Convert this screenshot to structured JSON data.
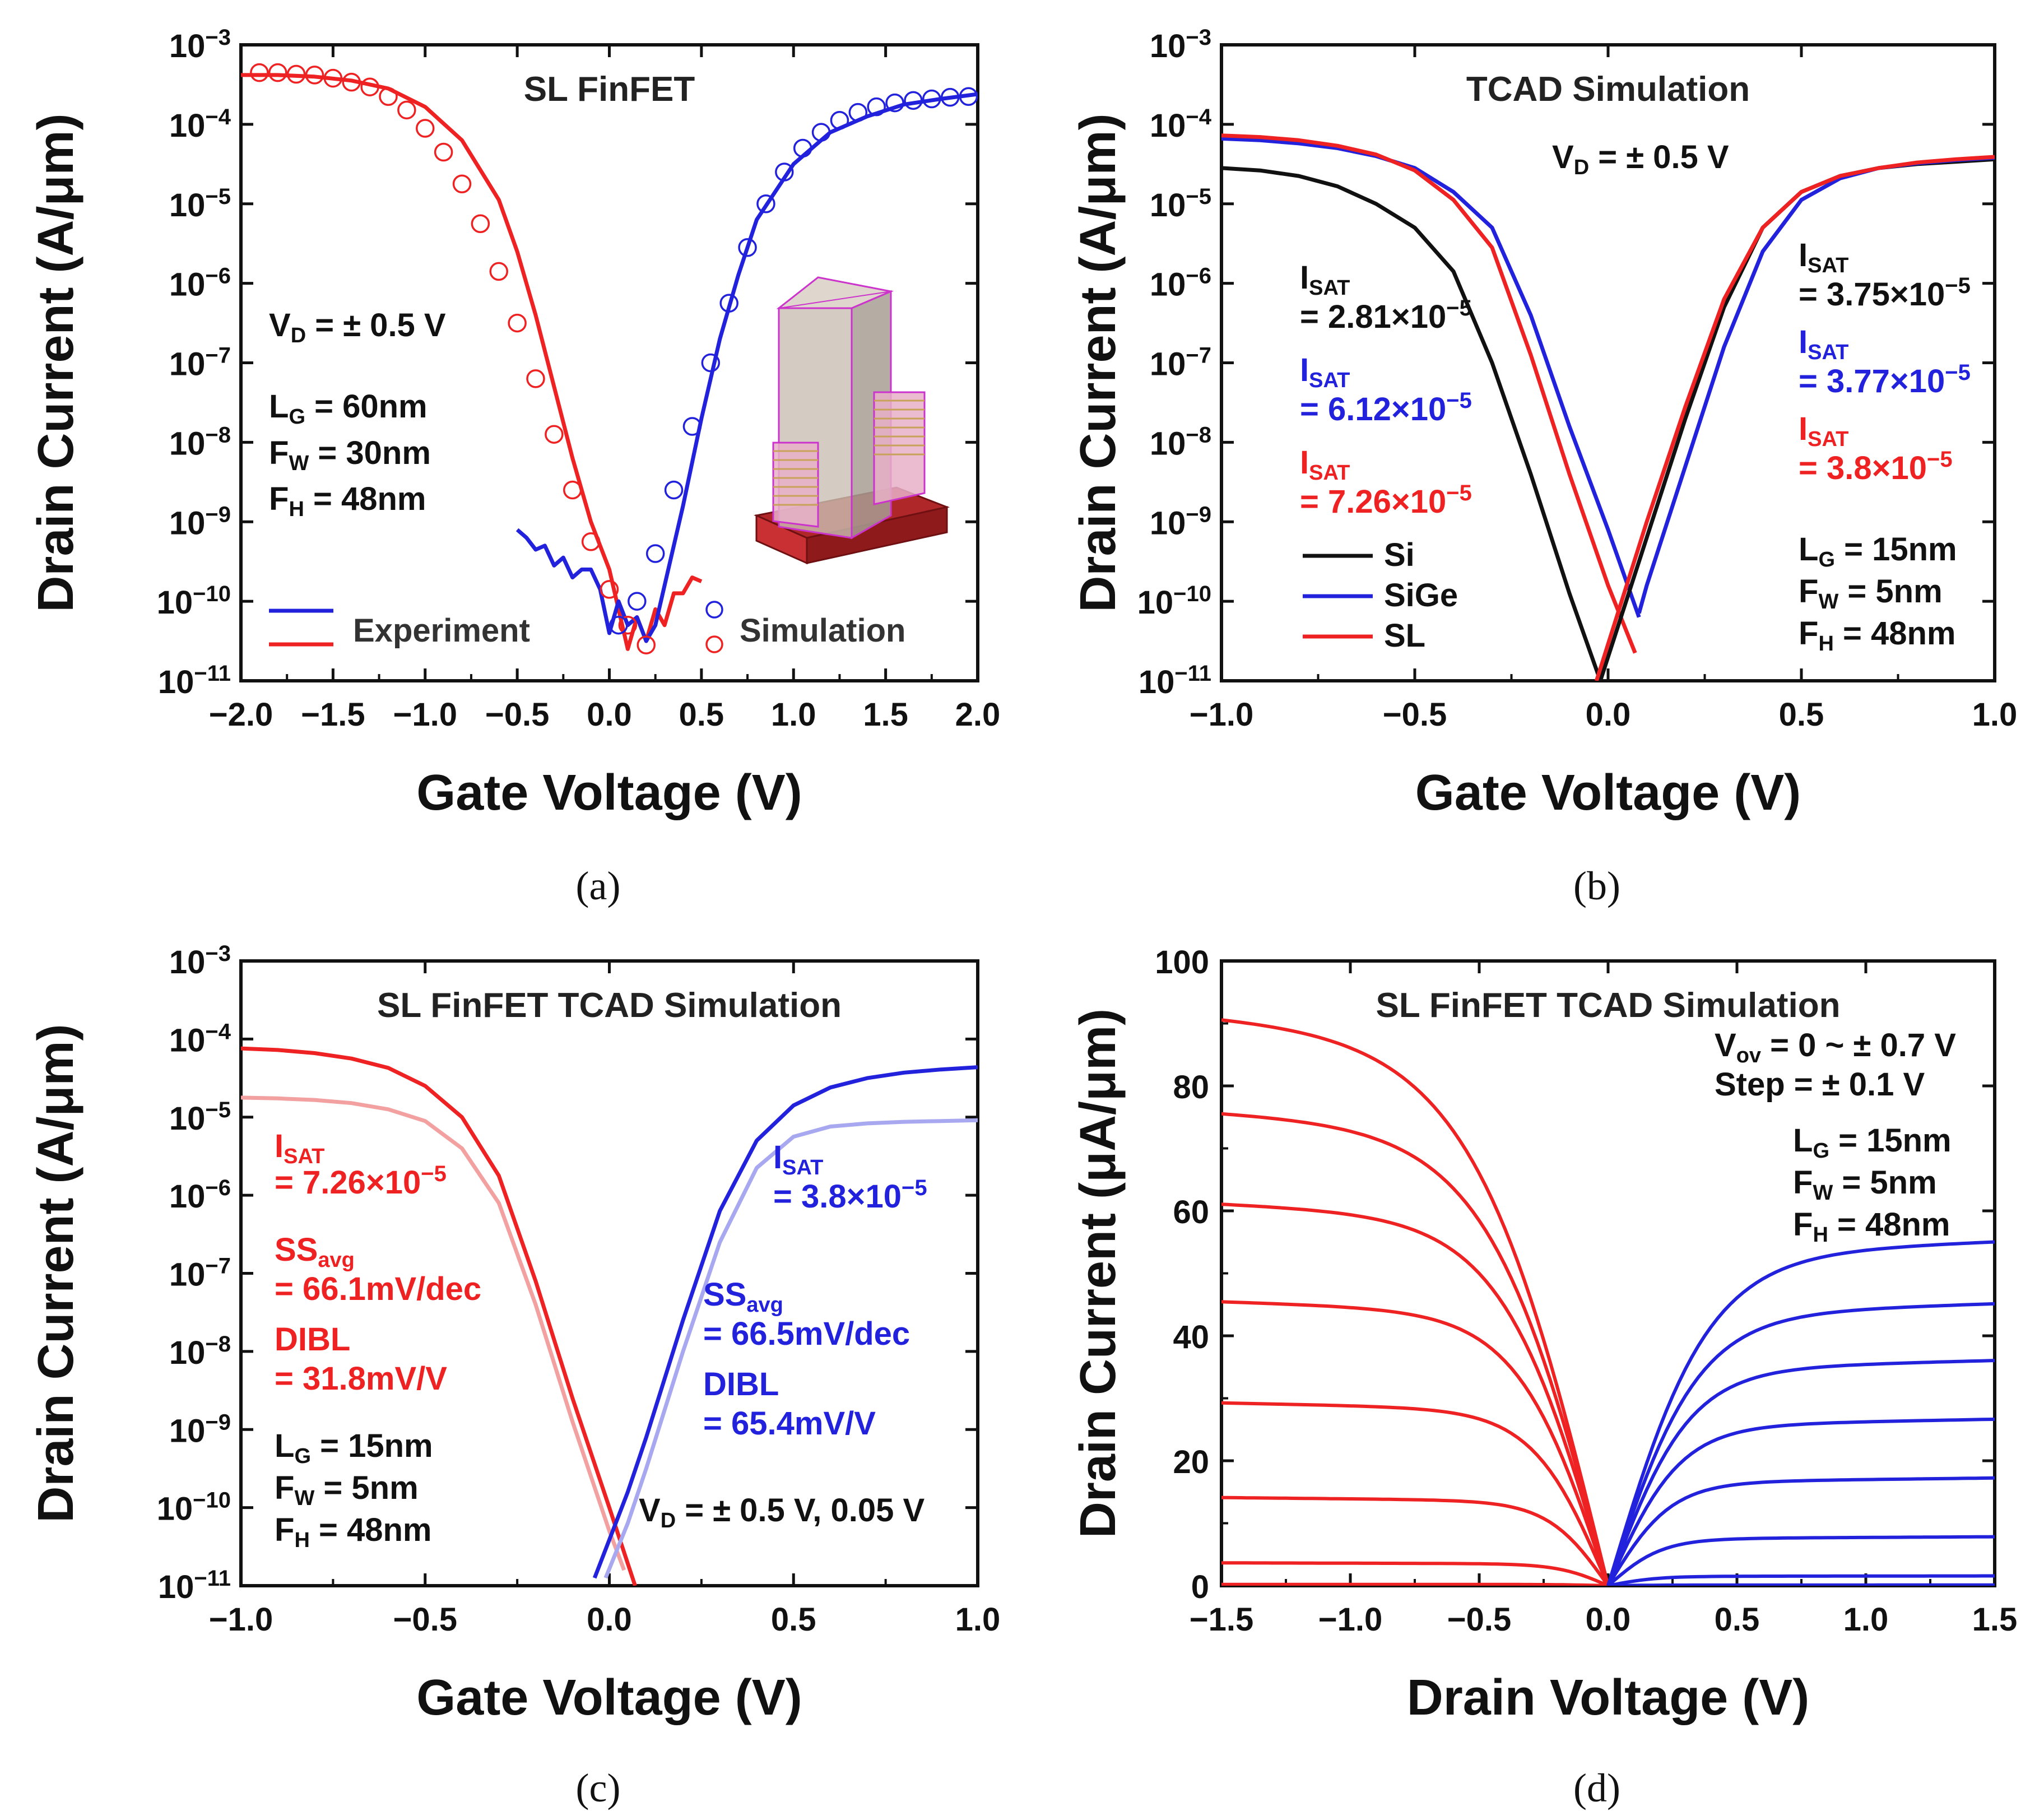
{
  "colors": {
    "red": "#ee2222",
    "blue": "#2222dd",
    "black": "#111111",
    "lightred": "#f2a0a0",
    "lightblue": "#a8a8f0"
  },
  "chart_data": [
    {
      "id": "a",
      "type": "line",
      "title": "SL FinFET",
      "caption": "(a)",
      "xlabel": "Gate Voltage (V)",
      "ylabel": "Drain Current (A/μm)",
      "xlim": [
        -2.0,
        2.0
      ],
      "ylim_log10": [
        -11,
        -3
      ],
      "xticks": [
        -2.0,
        -1.5,
        -1.0,
        -0.5,
        0.0,
        0.5,
        1.0,
        1.5,
        2.0
      ],
      "xtick_labels": [
        "−2.0",
        "−1.5",
        "−1.0",
        "−0.5",
        "0.0",
        "0.5",
        "1.0",
        "1.5",
        "2.0"
      ],
      "yticks": [
        -11,
        -10,
        -9,
        -8,
        -7,
        -6,
        -5,
        -4,
        -3
      ],
      "legend": {
        "items": [
          "Experiment",
          "Simulation"
        ],
        "placement": "bottom"
      },
      "annotations": [
        {
          "text": "V",
          "sub": "D",
          "rest": " = ± 0.5 V",
          "color": "#111111"
        },
        {
          "text": "L",
          "sub": "G",
          "rest": " = 60nm",
          "color": "#111111"
        },
        {
          "text": "F",
          "sub": "W",
          "rest": " = 30nm",
          "color": "#111111"
        },
        {
          "text": "F",
          "sub": "H",
          "rest": " = 48nm",
          "color": "#111111"
        }
      ],
      "series": [
        {
          "name": "Experiment (p-type)",
          "color": "#ee2222",
          "style": "line",
          "x": [
            -2.0,
            -1.8,
            -1.6,
            -1.4,
            -1.2,
            -1.0,
            -0.8,
            -0.6,
            -0.5,
            -0.4,
            -0.3,
            -0.2,
            -0.1,
            0.0,
            0.05,
            0.1,
            0.15,
            0.2,
            0.25,
            0.3,
            0.35,
            0.4,
            0.45,
            0.5
          ],
          "log10y": [
            -3.38,
            -3.38,
            -3.4,
            -3.45,
            -3.55,
            -3.78,
            -4.2,
            -4.95,
            -5.6,
            -6.4,
            -7.3,
            -8.2,
            -9.0,
            -9.6,
            -10.1,
            -10.6,
            -10.2,
            -10.5,
            -10.1,
            -10.3,
            -9.9,
            -9.9,
            -9.7,
            -9.75
          ]
        },
        {
          "name": "Experiment (n-type)",
          "color": "#2222dd",
          "style": "line",
          "x": [
            -0.5,
            -0.45,
            -0.4,
            -0.35,
            -0.3,
            -0.25,
            -0.2,
            -0.15,
            -0.1,
            -0.05,
            0.0,
            0.05,
            0.1,
            0.15,
            0.2,
            0.25,
            0.3,
            0.4,
            0.5,
            0.6,
            0.7,
            0.8,
            1.0,
            1.2,
            1.4,
            1.6,
            1.8,
            2.0
          ],
          "log10y": [
            -9.1,
            -9.2,
            -9.35,
            -9.3,
            -9.55,
            -9.45,
            -9.7,
            -9.6,
            -9.6,
            -9.85,
            -10.4,
            -10.0,
            -10.3,
            -10.2,
            -10.5,
            -10.3,
            -9.8,
            -8.8,
            -7.7,
            -6.7,
            -5.9,
            -5.2,
            -4.5,
            -4.1,
            -3.9,
            -3.75,
            -3.68,
            -3.62
          ]
        },
        {
          "name": "Simulation (p-type)",
          "color": "#ee2222",
          "style": "circles",
          "x": [
            -1.9,
            -1.8,
            -1.7,
            -1.6,
            -1.5,
            -1.4,
            -1.3,
            -1.2,
            -1.1,
            -1.0,
            -0.9,
            -0.8,
            -0.7,
            -0.6,
            -0.5,
            -0.4,
            -0.3,
            -0.2,
            -0.1,
            0.0,
            0.1,
            0.2
          ],
          "log10y": [
            -3.35,
            -3.35,
            -3.37,
            -3.38,
            -3.42,
            -3.47,
            -3.53,
            -3.65,
            -3.82,
            -4.05,
            -4.35,
            -4.75,
            -5.25,
            -5.85,
            -6.5,
            -7.2,
            -7.9,
            -8.6,
            -9.25,
            -9.85,
            -10.3,
            -10.55
          ]
        },
        {
          "name": "Simulation (n-type)",
          "color": "#2222dd",
          "style": "circles",
          "x": [
            0.05,
            0.15,
            0.25,
            0.35,
            0.45,
            0.55,
            0.65,
            0.75,
            0.85,
            0.95,
            1.05,
            1.15,
            1.25,
            1.35,
            1.45,
            1.55,
            1.65,
            1.75,
            1.85,
            1.95
          ],
          "log10y": [
            -10.3,
            -10.0,
            -9.4,
            -8.6,
            -7.8,
            -7.0,
            -6.25,
            -5.55,
            -5.0,
            -4.6,
            -4.3,
            -4.1,
            -3.95,
            -3.85,
            -3.78,
            -3.73,
            -3.7,
            -3.68,
            -3.66,
            -3.65
          ]
        }
      ]
    },
    {
      "id": "b",
      "type": "line",
      "title": "TCAD Simulation",
      "caption": "(b)",
      "xlabel": "Gate Voltage (V)",
      "ylabel": "Drain Current (A/μm)",
      "xlim": [
        -1.0,
        1.0
      ],
      "ylim_log10": [
        -11,
        -3
      ],
      "xticks": [
        -1.0,
        -0.5,
        0.0,
        0.5,
        1.0
      ],
      "xtick_labels": [
        "−1.0",
        "−0.5",
        "0.0",
        "0.5",
        "1.0"
      ],
      "yticks": [
        -11,
        -10,
        -9,
        -8,
        -7,
        -6,
        -5,
        -4,
        -3
      ],
      "legend": {
        "items": [
          "Si",
          "SiGe",
          "SL"
        ],
        "placement": "bottom-left"
      },
      "annotations": [
        {
          "text": "V",
          "sub": "D",
          "rest": " = ± 0.5 V",
          "color": "#111111"
        },
        {
          "text": "I",
          "sub": "SAT",
          "rest": "",
          "color": "#111111"
        },
        {
          "text": "= 2.81×10",
          "sub": "",
          "rest": "−5",
          "color": "#111111"
        },
        {
          "text": "I",
          "sub": "SAT",
          "rest": "",
          "color": "#2222dd"
        },
        {
          "text": "= 6.12×10",
          "sub": "",
          "rest": "−5",
          "color": "#2222dd"
        },
        {
          "text": "I",
          "sub": "SAT",
          "rest": "",
          "color": "#ee2222"
        },
        {
          "text": "= 7.26×10",
          "sub": "",
          "rest": "−5",
          "color": "#ee2222"
        },
        {
          "text": "I",
          "sub": "SAT",
          "rest": "",
          "color": "#111111"
        },
        {
          "text": "= 3.75×10",
          "sub": "",
          "rest": "−5",
          "color": "#111111"
        },
        {
          "text": "I",
          "sub": "SAT",
          "rest": "",
          "color": "#2222dd"
        },
        {
          "text": "= 3.77×10",
          "sub": "",
          "rest": "−5",
          "color": "#2222dd"
        },
        {
          "text": "I",
          "sub": "SAT",
          "rest": "",
          "color": "#ee2222"
        },
        {
          "text": "= 3.8×10",
          "sub": "",
          "rest": "−5",
          "color": "#ee2222"
        },
        {
          "text": "L",
          "sub": "G",
          "rest": " = 15nm",
          "color": "#111111"
        },
        {
          "text": "F",
          "sub": "W",
          "rest": " = 5nm",
          "color": "#111111"
        },
        {
          "text": "F",
          "sub": "H",
          "rest": " = 48nm",
          "color": "#111111"
        }
      ],
      "series": [
        {
          "name": "Si p",
          "color": "#111111",
          "x": [
            -1.0,
            -0.9,
            -0.8,
            -0.7,
            -0.6,
            -0.5,
            -0.4,
            -0.3,
            -0.2,
            -0.1,
            -0.02
          ],
          "log10y": [
            -4.55,
            -4.58,
            -4.65,
            -4.78,
            -5.0,
            -5.3,
            -5.85,
            -7.0,
            -8.4,
            -9.9,
            -11.0
          ]
        },
        {
          "name": "SiGe p",
          "color": "#2222dd",
          "x": [
            -1.0,
            -0.9,
            -0.8,
            -0.7,
            -0.6,
            -0.5,
            -0.4,
            -0.3,
            -0.2,
            -0.1,
            0.0,
            0.08
          ],
          "log10y": [
            -4.18,
            -4.2,
            -4.24,
            -4.3,
            -4.4,
            -4.55,
            -4.85,
            -5.3,
            -6.4,
            -7.8,
            -9.1,
            -10.2
          ]
        },
        {
          "name": "SL p",
          "color": "#ee2222",
          "x": [
            -1.0,
            -0.9,
            -0.8,
            -0.7,
            -0.6,
            -0.5,
            -0.4,
            -0.3,
            -0.2,
            -0.1,
            0.0,
            0.07
          ],
          "log10y": [
            -4.14,
            -4.16,
            -4.2,
            -4.27,
            -4.38,
            -4.58,
            -4.95,
            -5.55,
            -6.9,
            -8.4,
            -9.8,
            -10.65
          ]
        },
        {
          "name": "Si n",
          "color": "#111111",
          "x": [
            -0.02,
            0.1,
            0.2,
            0.3,
            0.4,
            0.5,
            0.6,
            0.7,
            0.8,
            0.9,
            1.0
          ],
          "log10y": [
            -11.0,
            -9.2,
            -7.7,
            -6.3,
            -5.3,
            -4.85,
            -4.65,
            -4.55,
            -4.5,
            -4.47,
            -4.44
          ]
        },
        {
          "name": "SiGe n",
          "color": "#2222dd",
          "x": [
            0.08,
            0.1,
            0.2,
            0.3,
            0.4,
            0.5,
            0.6,
            0.7,
            0.8,
            0.9,
            1.0
          ],
          "log10y": [
            -10.15,
            -9.8,
            -8.3,
            -6.8,
            -5.6,
            -4.95,
            -4.68,
            -4.55,
            -4.49,
            -4.45,
            -4.42
          ]
        },
        {
          "name": "SL n",
          "color": "#ee2222",
          "x": [
            -0.03,
            0.1,
            0.2,
            0.3,
            0.4,
            0.5,
            0.6,
            0.7,
            0.8,
            0.9,
            1.0
          ],
          "log10y": [
            -11.0,
            -9.0,
            -7.55,
            -6.2,
            -5.3,
            -4.85,
            -4.65,
            -4.55,
            -4.48,
            -4.44,
            -4.41
          ]
        }
      ]
    },
    {
      "id": "c",
      "type": "line",
      "title": "SL FinFET TCAD Simulation",
      "caption": "(c)",
      "xlabel": "Gate Voltage (V)",
      "ylabel": "Drain Current (A/μm)",
      "xlim": [
        -1.0,
        1.0
      ],
      "ylim_log10": [
        -11,
        -3
      ],
      "xticks": [
        -1.0,
        -0.5,
        0.0,
        0.5,
        1.0
      ],
      "xtick_labels": [
        "−1.0",
        "−0.5",
        "0.0",
        "0.5",
        "1.0"
      ],
      "yticks": [
        -11,
        -10,
        -9,
        -8,
        -7,
        -6,
        -5,
        -4,
        -3
      ],
      "annotations": [
        {
          "text": "I",
          "sub": "SAT",
          "rest": "",
          "color": "#ee2222"
        },
        {
          "text": "= 7.26×10",
          "sub": "",
          "rest": "−5",
          "color": "#ee2222"
        },
        {
          "text": "SS",
          "sub": "avg",
          "rest": "",
          "color": "#ee2222"
        },
        {
          "text": "= 66.1mV/dec",
          "sub": "",
          "rest": "",
          "color": "#ee2222"
        },
        {
          "text": "DIBL",
          "sub": "",
          "rest": "",
          "color": "#ee2222"
        },
        {
          "text": "= 31.8mV/V",
          "sub": "",
          "rest": "",
          "color": "#ee2222"
        },
        {
          "text": "I",
          "sub": "SAT",
          "rest": "",
          "color": "#2222dd"
        },
        {
          "text": "= 3.8×10",
          "sub": "",
          "rest": "−5",
          "color": "#2222dd"
        },
        {
          "text": "SS",
          "sub": "avg",
          "rest": "",
          "color": "#2222dd"
        },
        {
          "text": "= 66.5mV/dec",
          "sub": "",
          "rest": "",
          "color": "#2222dd"
        },
        {
          "text": "DIBL",
          "sub": "",
          "rest": "",
          "color": "#2222dd"
        },
        {
          "text": "= 65.4mV/V",
          "sub": "",
          "rest": "",
          "color": "#2222dd"
        },
        {
          "text": "L",
          "sub": "G",
          "rest": " = 15nm",
          "color": "#111111"
        },
        {
          "text": "F",
          "sub": "W",
          "rest": " = 5nm",
          "color": "#111111"
        },
        {
          "text": "F",
          "sub": "H",
          "rest": " = 48nm",
          "color": "#111111"
        },
        {
          "text": "V",
          "sub": "D",
          "rest": " = ± 0.5 V, 0.05 V",
          "color": "#111111"
        }
      ],
      "series": [
        {
          "name": "p V_D=0.5",
          "color": "#ee2222",
          "x": [
            -1.0,
            -0.9,
            -0.8,
            -0.7,
            -0.6,
            -0.5,
            -0.4,
            -0.3,
            -0.2,
            -0.1,
            0.0,
            0.07
          ],
          "log10y": [
            -4.12,
            -4.14,
            -4.18,
            -4.25,
            -4.37,
            -4.6,
            -5.0,
            -5.75,
            -7.1,
            -8.6,
            -10.0,
            -11.0
          ]
        },
        {
          "name": "p V_D=0.05",
          "color": "#f2a0a0",
          "x": [
            -1.0,
            -0.9,
            -0.8,
            -0.7,
            -0.6,
            -0.5,
            -0.4,
            -0.3,
            -0.2,
            -0.1,
            0.0,
            0.04
          ],
          "log10y": [
            -4.75,
            -4.76,
            -4.78,
            -4.82,
            -4.9,
            -5.05,
            -5.4,
            -6.1,
            -7.4,
            -8.9,
            -10.3,
            -10.8
          ]
        },
        {
          "name": "n V_D=0.5",
          "color": "#2222dd",
          "x": [
            -0.04,
            0.05,
            0.1,
            0.2,
            0.3,
            0.4,
            0.5,
            0.6,
            0.7,
            0.8,
            0.9,
            1.0
          ],
          "log10y": [
            -10.9,
            -9.8,
            -9.1,
            -7.6,
            -6.2,
            -5.3,
            -4.85,
            -4.62,
            -4.5,
            -4.43,
            -4.39,
            -4.36
          ]
        },
        {
          "name": "n V_D=0.05",
          "color": "#a8a8f0",
          "x": [
            -0.01,
            0.05,
            0.1,
            0.2,
            0.3,
            0.4,
            0.5,
            0.6,
            0.7,
            0.8,
            0.9,
            1.0
          ],
          "log10y": [
            -10.9,
            -10.2,
            -9.5,
            -8.0,
            -6.6,
            -5.65,
            -5.25,
            -5.12,
            -5.08,
            -5.06,
            -5.05,
            -5.04
          ]
        }
      ]
    },
    {
      "id": "d",
      "type": "line",
      "title": "SL FinFET TCAD Simulation",
      "caption": "(d)",
      "xlabel": "Drain Voltage (V)",
      "ylabel": "Drain Current (μA/μm)",
      "xlim": [
        -1.5,
        1.5
      ],
      "ylim": [
        0,
        100
      ],
      "xticks": [
        -1.5,
        -1.0,
        -0.5,
        0.0,
        0.5,
        1.0,
        1.5
      ],
      "xtick_labels": [
        "−1.5",
        "−1.0",
        "−0.5",
        "0.0",
        "0.5",
        "1.0",
        "1.5"
      ],
      "yticks": [
        0,
        20,
        40,
        60,
        80,
        100
      ],
      "ytick_labels": [
        "0",
        "20",
        "40",
        "60",
        "80",
        "100"
      ],
      "annotations": [
        {
          "text": "V",
          "sub": "ov",
          "rest": " = 0 ~ ± 0.7 V",
          "color": "#111111"
        },
        {
          "text": "Step = ± 0.1 V",
          "sub": "",
          "rest": "",
          "color": "#111111"
        },
        {
          "text": "L",
          "sub": "G",
          "rest": " = 15nm",
          "color": "#111111"
        },
        {
          "text": "F",
          "sub": "W",
          "rest": " = 5nm",
          "color": "#111111"
        },
        {
          "text": "F",
          "sub": "H",
          "rest": " = 48nm",
          "color": "#111111"
        }
      ],
      "p_type_sat_uA": [
        87.2,
        72.5,
        58.5,
        43.5,
        28.0,
        13.5,
        3.5,
        0.2
      ],
      "n_type_sat_uA": [
        52.7,
        43.2,
        34.5,
        25.5,
        16.5,
        7.5,
        1.5,
        0.1
      ]
    }
  ]
}
